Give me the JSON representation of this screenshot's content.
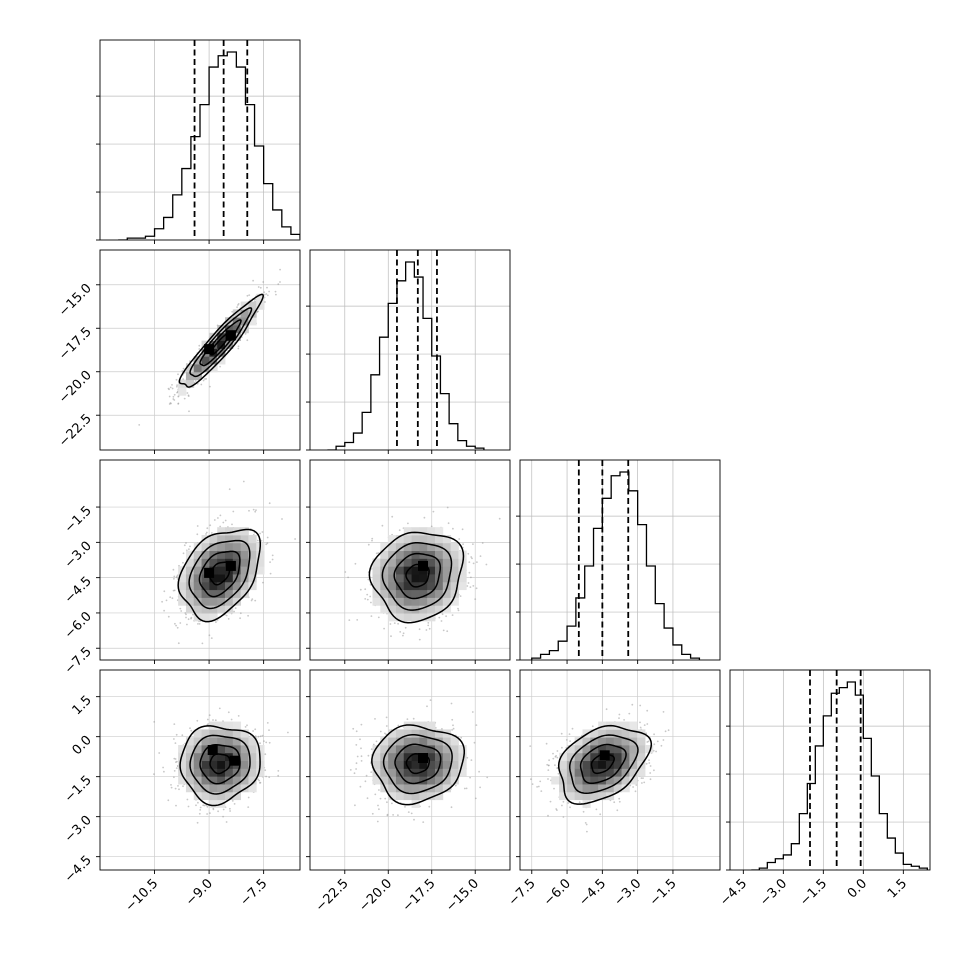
{
  "chart_data": {
    "type": "corner",
    "grid": true,
    "params": [
      {
        "range": [
          -12.0,
          -6.5
        ],
        "ticks": [
          "−10.5",
          "−9.0",
          "−7.5"
        ],
        "tick_values": [
          -10.5,
          -9.0,
          -7.5
        ],
        "hist": {
          "start": -11.5,
          "width": 0.25,
          "counts": [
            0.0,
            0.01,
            0.01,
            0.02,
            0.06,
            0.12,
            0.24,
            0.38,
            0.55,
            0.72,
            0.92,
            0.98,
            1.0,
            0.92,
            0.72,
            0.5,
            0.3,
            0.16,
            0.07,
            0.03,
            0.01
          ]
        },
        "quantiles": [
          -9.4,
          -8.6,
          -7.95
        ]
      },
      {
        "range": [
          -24.5,
          -13.0
        ],
        "ticks": [
          "−22.5",
          "−20.0",
          "−17.5",
          "−15.0"
        ],
        "tick_values": [
          -22.5,
          -20.0,
          -17.5,
          -15.0
        ],
        "hist": {
          "start": -23.5,
          "width": 0.5,
          "counts": [
            0.0,
            0.02,
            0.04,
            0.09,
            0.2,
            0.4,
            0.6,
            0.78,
            0.9,
            1.0,
            0.92,
            0.7,
            0.5,
            0.3,
            0.14,
            0.05,
            0.02,
            0.01
          ]
        },
        "quantiles": [
          -19.5,
          -18.3,
          -17.2
        ]
      },
      {
        "range": [
          -8.0,
          0.5
        ],
        "ticks": [
          "−7.5",
          "−6.0",
          "−4.5",
          "−3.0",
          "−1.5"
        ],
        "tick_values": [
          -7.5,
          -6.0,
          -4.5,
          -3.0,
          -1.5
        ],
        "hist": {
          "start": -7.5,
          "width": 0.375,
          "counts": [
            0.01,
            0.03,
            0.05,
            0.1,
            0.18,
            0.33,
            0.5,
            0.7,
            0.86,
            0.98,
            1.0,
            0.9,
            0.72,
            0.5,
            0.3,
            0.17,
            0.08,
            0.03,
            0.01
          ]
        },
        "quantiles": [
          -5.5,
          -4.5,
          -3.4
        ]
      },
      {
        "range": [
          -5.0,
          2.5
        ],
        "ticks": [
          "−4.5",
          "−3.0",
          "−1.5",
          "0.0",
          "1.5"
        ],
        "tick_values": [
          -4.5,
          -3.0,
          -1.5,
          0.0,
          1.5
        ],
        "hist": {
          "start": -4.2,
          "width": 0.3,
          "counts": [
            0.0,
            0.01,
            0.04,
            0.06,
            0.08,
            0.14,
            0.3,
            0.46,
            0.66,
            0.82,
            0.94,
            0.97,
            1.0,
            0.93,
            0.7,
            0.5,
            0.3,
            0.17,
            0.09,
            0.03,
            0.02,
            0.01
          ]
        },
        "quantiles": [
          -2.0,
          -1.0,
          -0.1
        ]
      }
    ],
    "pairs": [
      {
        "row": 1,
        "col": 0,
        "mean": [
          -8.7,
          -18.4
        ],
        "sd": [
          0.55,
          1.3
        ],
        "corr": 0.93,
        "modes": [
          [
            -8.4,
            -17.9
          ],
          [
            -9.0,
            -18.7
          ]
        ]
      },
      {
        "row": 2,
        "col": 0,
        "mean": [
          -8.7,
          -4.3
        ],
        "sd": [
          0.55,
          0.95
        ],
        "corr": 0.35,
        "modes": [
          [
            -8.4,
            -4.0
          ],
          [
            -9.0,
            -4.3
          ]
        ]
      },
      {
        "row": 2,
        "col": 1,
        "mean": [
          -18.3,
          -4.4
        ],
        "sd": [
          1.3,
          0.95
        ],
        "corr": 0.1,
        "modes": [
          [
            -18.0,
            -4.0
          ]
        ]
      },
      {
        "row": 3,
        "col": 0,
        "mean": [
          -8.7,
          -1.0
        ],
        "sd": [
          0.55,
          0.72
        ],
        "corr": 0.05,
        "modes": [
          [
            -8.3,
            -0.9
          ],
          [
            -8.9,
            -0.5
          ]
        ]
      },
      {
        "row": 3,
        "col": 1,
        "mean": [
          -18.3,
          -1.0
        ],
        "sd": [
          1.3,
          0.72
        ],
        "corr": 0.05,
        "modes": [
          [
            -18.0,
            -0.8
          ]
        ]
      },
      {
        "row": 3,
        "col": 2,
        "mean": [
          -4.5,
          -1.0
        ],
        "sd": [
          0.95,
          0.72
        ],
        "corr": 0.35,
        "modes": [
          [
            -4.4,
            -0.7
          ]
        ]
      }
    ],
    "contour_levels_sigma": [
      0.5,
      1.0,
      1.5,
      2.0
    ]
  }
}
